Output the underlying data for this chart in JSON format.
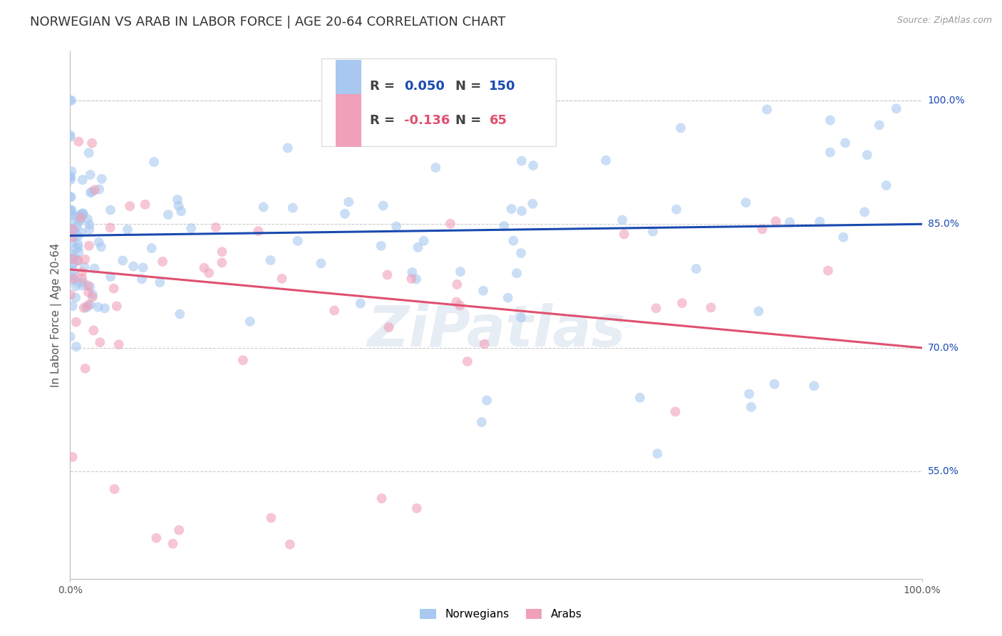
{
  "title": "NORWEGIAN VS ARAB IN LABOR FORCE | AGE 20-64 CORRELATION CHART",
  "source": "Source: ZipAtlas.com",
  "ylabel": "In Labor Force | Age 20-64",
  "xlim": [
    0.0,
    1.0
  ],
  "ylim": [
    0.42,
    1.06
  ],
  "y_ticks": [
    0.55,
    0.7,
    0.85,
    1.0
  ],
  "y_tick_labels": [
    "55.0%",
    "70.0%",
    "85.0%",
    "100.0%"
  ],
  "norwegian_color": "#A8C8F0",
  "arab_color": "#F0A0B8",
  "norwegian_line_color": "#1A4AB0",
  "arab_line_color": "#E05070",
  "legend_norwegian_label": "Norwegians",
  "legend_arab_label": "Arabs",
  "R_norwegian": 0.05,
  "N_norwegian": 150,
  "R_arab": -0.136,
  "N_arab": 65,
  "watermark": "ZiPatlas",
  "background_color": "#ffffff",
  "grid_color": "#cccccc",
  "title_fontsize": 13,
  "axis_label_fontsize": 11,
  "tick_fontsize": 10,
  "dot_size": 100,
  "dot_alpha": 0.6,
  "nor_line_start_y": 0.836,
  "nor_line_end_y": 0.85,
  "arab_line_start_y": 0.795,
  "arab_line_end_y": 0.7
}
